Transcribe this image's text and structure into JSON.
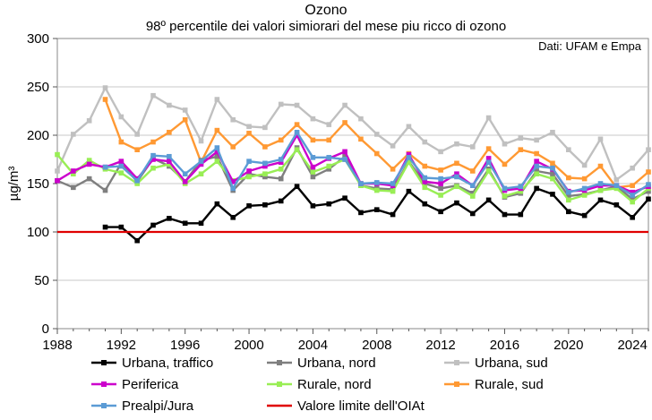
{
  "chart_data": {
    "type": "line",
    "title": "Ozono",
    "subtitle": "98º percentile dei valori simiorari del mese piu ricco di ozono",
    "source": "Dati: UFAM e Empa",
    "ylabel": "µg/m³",
    "xlabel": "",
    "xlim": [
      1988,
      2025
    ],
    "ylim": [
      0,
      300
    ],
    "xticks": [
      1988,
      1992,
      1996,
      2000,
      2004,
      2008,
      2012,
      2016,
      2020,
      2024
    ],
    "yticks": [
      0,
      50,
      100,
      150,
      200,
      250,
      300
    ],
    "grid": "horizontal",
    "legend_position": "bottom",
    "x": [
      1988,
      1989,
      1990,
      1991,
      1992,
      1993,
      1994,
      1995,
      1996,
      1997,
      1998,
      1999,
      2000,
      2001,
      2002,
      2003,
      2004,
      2005,
      2006,
      2007,
      2008,
      2009,
      2010,
      2011,
      2012,
      2013,
      2014,
      2015,
      2016,
      2017,
      2018,
      2019,
      2020,
      2021,
      2022,
      2023,
      2024,
      2025
    ],
    "series": [
      {
        "name": "Urbana, traffico",
        "color": "#000000",
        "marker": "square",
        "values": [
          null,
          null,
          null,
          105,
          105,
          91,
          107,
          114,
          109,
          109,
          129,
          115,
          127,
          128,
          132,
          147,
          127,
          129,
          135,
          120,
          123,
          118,
          142,
          129,
          121,
          130,
          119,
          133,
          118,
          118,
          145,
          139,
          121,
          117,
          133,
          128,
          115,
          134
        ]
      },
      {
        "name": "Urbana, nord",
        "color": "#7f7f7f",
        "marker": "square",
        "values": [
          153,
          146,
          155,
          143,
          171,
          152,
          176,
          168,
          152,
          174,
          178,
          143,
          160,
          157,
          155,
          187,
          157,
          165,
          178,
          148,
          145,
          144,
          173,
          150,
          145,
          148,
          140,
          165,
          136,
          140,
          163,
          160,
          137,
          139,
          143,
          147,
          134,
          142
        ]
      },
      {
        "name": "Urbana, sud",
        "color": "#c0c0c0",
        "marker": "square",
        "values": [
          163,
          201,
          215,
          249,
          219,
          201,
          241,
          231,
          226,
          194,
          237,
          216,
          209,
          208,
          232,
          231,
          217,
          211,
          231,
          217,
          201,
          189,
          209,
          193,
          183,
          191,
          188,
          218,
          191,
          197,
          195,
          203,
          185,
          169,
          196,
          154,
          166,
          185
        ]
      },
      {
        "name": "Periferica",
        "color": "#cc00cc",
        "marker": "square",
        "values": [
          153,
          163,
          170,
          167,
          173,
          155,
          175,
          173,
          152,
          170,
          183,
          152,
          163,
          168,
          172,
          200,
          167,
          176,
          183,
          150,
          150,
          148,
          180,
          152,
          150,
          160,
          148,
          176,
          143,
          145,
          173,
          165,
          142,
          143,
          148,
          148,
          141,
          147
        ]
      },
      {
        "name": "Rurale, nord",
        "color": "#99ee55",
        "marker": "square",
        "values": [
          180,
          160,
          174,
          165,
          161,
          150,
          166,
          170,
          150,
          160,
          173,
          153,
          157,
          160,
          165,
          185,
          162,
          168,
          175,
          148,
          143,
          142,
          172,
          146,
          138,
          147,
          137,
          163,
          137,
          142,
          160,
          155,
          133,
          138,
          143,
          145,
          131,
          145
        ]
      },
      {
        "name": "Rurale, sud",
        "color": "#ff9933",
        "marker": "square",
        "values": [
          null,
          null,
          null,
          237,
          193,
          185,
          193,
          203,
          216,
          172,
          205,
          188,
          202,
          188,
          195,
          211,
          195,
          195,
          213,
          196,
          181,
          165,
          181,
          168,
          164,
          171,
          163,
          186,
          170,
          185,
          181,
          171,
          156,
          155,
          168,
          146,
          148,
          162
        ]
      },
      {
        "name": "Prealpi/Jura",
        "color": "#5b9bd5",
        "marker": "square",
        "values": [
          null,
          null,
          null,
          167,
          168,
          153,
          179,
          178,
          160,
          173,
          187,
          145,
          173,
          171,
          175,
          203,
          177,
          177,
          175,
          150,
          151,
          150,
          177,
          156,
          155,
          157,
          148,
          172,
          145,
          147,
          168,
          166,
          141,
          145,
          150,
          148,
          138,
          149
        ]
      },
      {
        "name": "Valore limite dell'OIAt",
        "color": "#e00000",
        "marker": "none",
        "constant": 100
      }
    ]
  }
}
